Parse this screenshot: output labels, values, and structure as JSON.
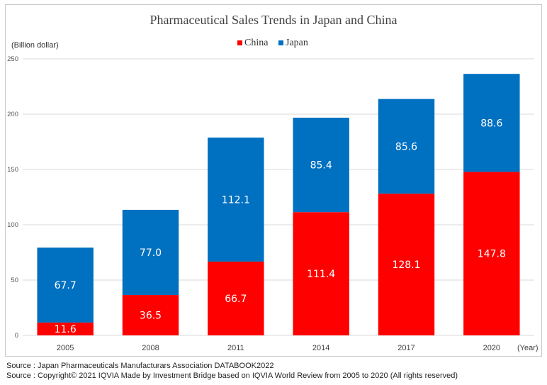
{
  "chart_data": {
    "type": "bar",
    "stacked": true,
    "title": "Pharmaceutical Sales Trends in Japan and China",
    "ylabel": "(Billion dollar)",
    "xlabel": "(Year)",
    "categories": [
      "2005",
      "2008",
      "2011",
      "2014",
      "2017",
      "2020"
    ],
    "series": [
      {
        "name": "China",
        "color": "#ff0000",
        "values": [
          11.6,
          36.5,
          66.7,
          111.4,
          128.1,
          147.8
        ],
        "labels": [
          "11.6",
          "36.5",
          "66.7",
          "111.4",
          "128.1",
          "147.8"
        ]
      },
      {
        "name": "Japan",
        "color": "#0070c0",
        "values": [
          67.7,
          77.0,
          112.1,
          85.4,
          85.6,
          88.6
        ],
        "labels": [
          "67.7",
          "77.0",
          "112.1",
          "85.4",
          "85.6",
          "88.6"
        ]
      }
    ],
    "ylim": [
      0,
      250
    ],
    "yticks": [
      0,
      50,
      100,
      150,
      200,
      250
    ],
    "grid": true,
    "legend_position": "top-center"
  },
  "sources": [
    "Source : Japan Pharmaceuticals Manufacturars Association DATABOOK2022",
    "Source : Copyright© 2021 IQVIA Made by Investment Bridge based on IQVIA World Review from 2005 to 2020 (All rights reserved)"
  ]
}
